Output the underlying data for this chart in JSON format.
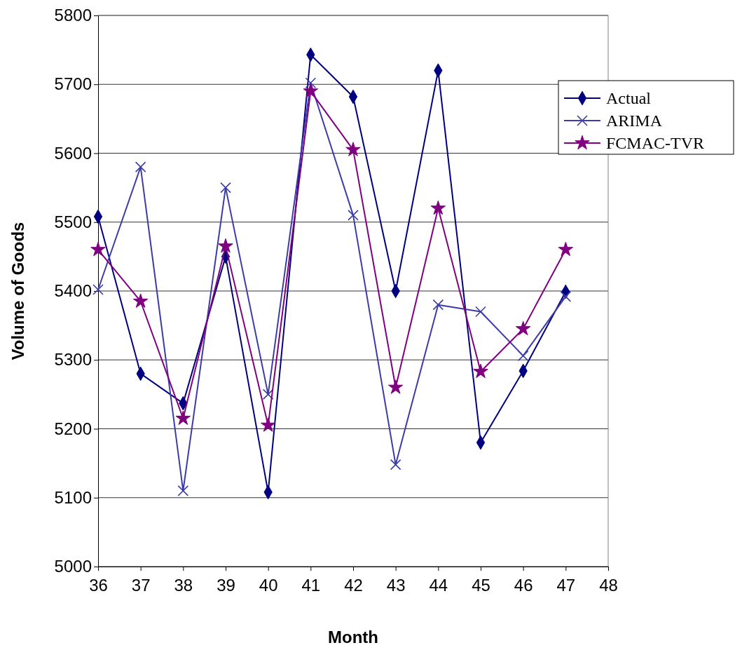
{
  "chart_data": {
    "type": "line",
    "xlabel": "Month",
    "ylabel": "Volume of Goods",
    "x": [
      36,
      37,
      38,
      39,
      40,
      41,
      42,
      43,
      44,
      45,
      46,
      47
    ],
    "xlim": [
      36,
      48
    ],
    "xticks": [
      36,
      37,
      38,
      39,
      40,
      41,
      42,
      43,
      44,
      45,
      46,
      47,
      48
    ],
    "ylim": [
      5000,
      5800
    ],
    "yticks": [
      5000,
      5100,
      5200,
      5300,
      5400,
      5500,
      5600,
      5700,
      5800
    ],
    "grid": "y",
    "legend": "right",
    "line_style": "solid",
    "series": [
      {
        "name": "Actual",
        "color": "#000080",
        "marker": "diamond",
        "values": [
          5508,
          5280,
          5237,
          5450,
          5108,
          5743,
          5682,
          5400,
          5720,
          5180,
          5284,
          5399
        ]
      },
      {
        "name": "ARIMA",
        "color": "#3c3ca8",
        "marker": "cross",
        "values": [
          5402,
          5580,
          5110,
          5550,
          5250,
          5702,
          5510,
          5148,
          5380,
          5370,
          5306,
          5392
        ]
      },
      {
        "name": "FCMAC-TVR",
        "color": "#800080",
        "marker": "star",
        "values": [
          5460,
          5385,
          5215,
          5465,
          5205,
          5690,
          5605,
          5260,
          5520,
          5283,
          5345,
          5460
        ]
      }
    ]
  }
}
